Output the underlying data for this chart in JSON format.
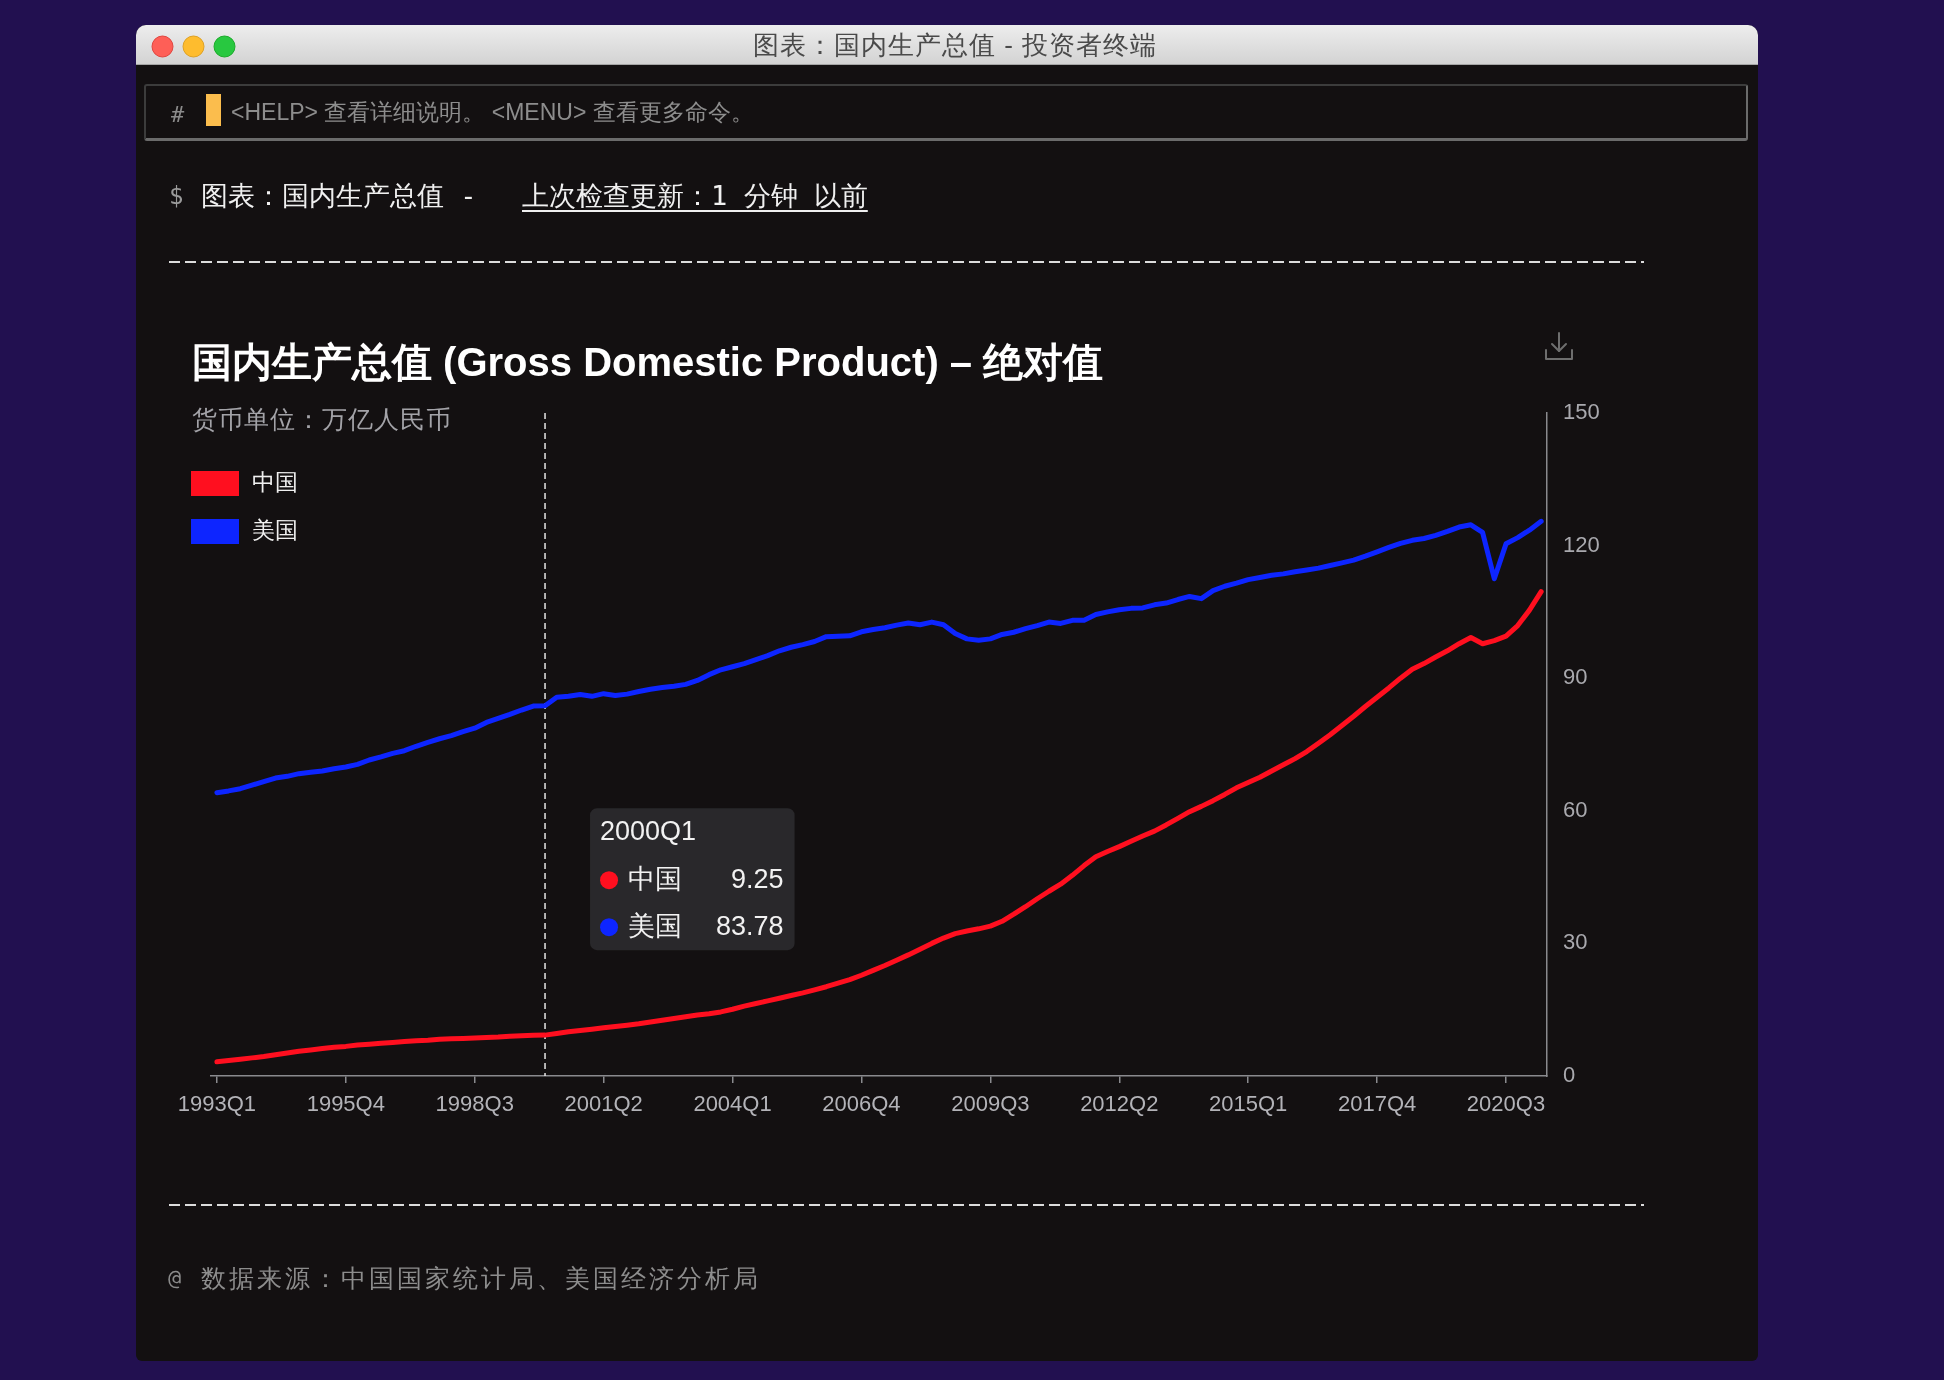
{
  "chart_data": {
    "type": "line",
    "title": "国内生产总值 (Gross Domestic Product) – 绝对值",
    "subtitle": "货币单位：万亿人民币",
    "annotations": [
      "图表：国内生产总值 - 投资者终端",
      "#",
      "<HELP> 查看详细说明。 <MENU> 查看更多命令。",
      "$",
      "图表：国内生产总值 -",
      "上次检查更新：1 分钟 以前",
      "@",
      "数据来源：中国国家统计局、美国经济分析局",
      "9.25",
      "83.78"
    ],
    "x": [
      "1993-01",
      "1993-04",
      "1993-07",
      "1993-10",
      "1994-01",
      "1994-04",
      "1994-07",
      "1994-10",
      "1995-01",
      "1995-04",
      "1995-07",
      "1995-10",
      "1996-01",
      "1996-04",
      "1996-07",
      "1996-10",
      "1997-01",
      "1997-04",
      "1997-07",
      "1997-10",
      "1998-01",
      "1998-04",
      "1998-07",
      "1998-10",
      "1999-01",
      "1999-04",
      "1999-07",
      "1999-10",
      "2000-01",
      "2000-04",
      "2000-07",
      "2000-10",
      "2001-01",
      "2001-04",
      "2001-07",
      "2001-10",
      "2002-01",
      "2002-04",
      "2002-07",
      "2002-10",
      "2003-01",
      "2003-04",
      "2003-07",
      "2003-10",
      "2004-01",
      "2004-04",
      "2004-07",
      "2004-10",
      "2005-01",
      "2005-04",
      "2005-07",
      "2005-10",
      "2006-01",
      "2006-04",
      "2006-07",
      "2006-10",
      "2007-01",
      "2007-04",
      "2007-07",
      "2007-10",
      "2008-01",
      "2008-04",
      "2008-07",
      "2008-10",
      "2009-01",
      "2009-04",
      "2009-07",
      "2009-10",
      "2010-01",
      "2010-04",
      "2010-07",
      "2010-10",
      "2011-01",
      "2011-04",
      "2011-07",
      "2011-10",
      "2012-01",
      "2012-04",
      "2012-07",
      "2012-10",
      "2013-01",
      "2013-04",
      "2013-07",
      "2013-10",
      "2014-01",
      "2014-04",
      "2014-07",
      "2014-10",
      "2015-01",
      "2015-04",
      "2015-07",
      "2015-10",
      "2016-01",
      "2016-04",
      "2016-07",
      "2016-10",
      "2017-01",
      "2017-04",
      "2017-07",
      "2017-10",
      "2018-01",
      "2018-04",
      "2018-07",
      "2018-10",
      "2019-01",
      "2019-04",
      "2019-07",
      "2019-10",
      "2020-01",
      "2020-04",
      "2020-07",
      "2020-10",
      "2021-01",
      "2021-04"
    ],
    "series": [
      {
        "name": "中国",
        "color": "#ff0f1f",
        "values": [
          3.2,
          3.5,
          3.8,
          4.1,
          4.4,
          4.8,
          5.2,
          5.6,
          5.9,
          6.2,
          6.5,
          6.7,
          7.0,
          7.2,
          7.4,
          7.6,
          7.8,
          8.0,
          8.1,
          8.3,
          8.4,
          8.5,
          8.6,
          8.7,
          8.8,
          9.0,
          9.1,
          9.2,
          9.25,
          9.6,
          10.0,
          10.3,
          10.6,
          10.9,
          11.2,
          11.5,
          11.8,
          12.2,
          12.6,
          13.0,
          13.4,
          13.8,
          14.1,
          14.5,
          15.1,
          15.8,
          16.4,
          17.0,
          17.6,
          18.2,
          18.8,
          19.5,
          20.2,
          21.0,
          21.8,
          22.8,
          23.9,
          25.0,
          26.2,
          27.4,
          28.7,
          30.0,
          31.2,
          32.2,
          32.8,
          33.3,
          33.9,
          35.0,
          36.6,
          38.3,
          40.1,
          41.8,
          43.4,
          45.4,
          47.6,
          49.6,
          50.8,
          51.9,
          53.1,
          54.3,
          55.4,
          56.8,
          58.3,
          59.8,
          61.0,
          62.3,
          63.7,
          65.2,
          66.4,
          67.6,
          69.0,
          70.4,
          71.8,
          73.4,
          75.3,
          77.2,
          79.3,
          81.4,
          83.6,
          85.7,
          87.8,
          90.0,
          92.0,
          93.3,
          94.8,
          96.2,
          97.8,
          99.2,
          97.8,
          98.5,
          99.5,
          101.9,
          105.4,
          109.6
        ]
      },
      {
        "name": "美国",
        "color": "#0d25ff",
        "values": [
          64.1,
          64.5,
          65.0,
          65.8,
          66.6,
          67.4,
          67.8,
          68.4,
          68.7,
          69.0,
          69.5,
          69.9,
          70.5,
          71.5,
          72.2,
          73.0,
          73.6,
          74.6,
          75.5,
          76.3,
          77.0,
          77.9,
          78.7,
          80.0,
          80.9,
          81.8,
          82.8,
          83.7,
          83.78,
          85.7,
          85.9,
          86.3,
          85.9,
          86.5,
          86.1,
          86.4,
          87.0,
          87.5,
          87.9,
          88.2,
          88.6,
          89.5,
          90.8,
          91.9,
          92.6,
          93.3,
          94.2,
          95.1,
          96.2,
          97.0,
          97.6,
          98.3,
          99.4,
          99.5,
          99.6,
          100.5,
          101.0,
          101.4,
          102.0,
          102.5,
          102.1,
          102.7,
          102.1,
          100.1,
          98.9,
          98.6,
          98.9,
          99.9,
          100.4,
          101.2,
          101.9,
          102.7,
          102.4,
          103.1,
          103.1,
          104.4,
          105.0,
          105.5,
          105.8,
          105.9,
          106.6,
          107.0,
          107.8,
          108.5,
          108.0,
          109.8,
          110.8,
          111.5,
          112.3,
          112.8,
          113.3,
          113.6,
          114.1,
          114.5,
          114.9,
          115.5,
          116.1,
          116.7,
          117.6,
          118.6,
          119.6,
          120.5,
          121.2,
          121.6,
          122.3,
          123.2,
          124.2,
          124.7,
          123.0,
          112.5,
          120.4,
          121.8,
          123.5,
          125.5
        ]
      }
    ],
    "xlim": [
      "1992-11-16",
      "2021-05-16"
    ],
    "xticks": [
      {
        "value": "1993-01",
        "label": "1993Q1"
      },
      {
        "value": "1995-10",
        "label": "1995Q4"
      },
      {
        "value": "1998-07",
        "label": "1998Q3"
      },
      {
        "value": "2001-04",
        "label": "2001Q2"
      },
      {
        "value": "2004-01",
        "label": "2004Q1"
      },
      {
        "value": "2006-10",
        "label": "2006Q4"
      },
      {
        "value": "2009-07",
        "label": "2009Q3"
      },
      {
        "value": "2012-04",
        "label": "2012Q2"
      },
      {
        "value": "2015-01",
        "label": "2015Q1"
      },
      {
        "value": "2017-10",
        "label": "2017Q4"
      },
      {
        "value": "2020-07",
        "label": "2020Q3"
      }
    ],
    "ylim": [
      0,
      150
    ],
    "yticks": [
      0,
      30,
      60,
      90,
      120,
      150
    ],
    "ref_lines": [
      {
        "axis": "x",
        "value": "2000-01",
        "label": "2000Q1",
        "color": "#e6e6e6",
        "line_style": "dashed"
      }
    ],
    "legend": "top left"
  }
}
